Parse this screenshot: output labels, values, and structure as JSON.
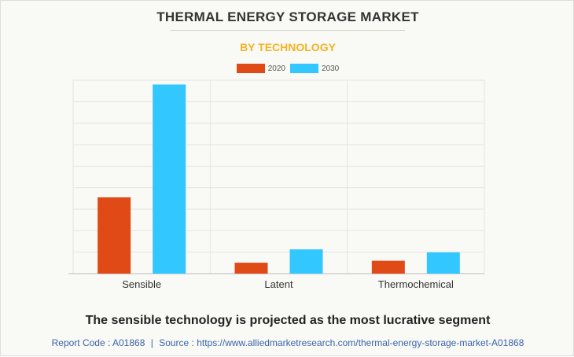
{
  "header": {
    "title": "THERMAL ENERGY STORAGE MARKET",
    "subtitle": "BY TECHNOLOGY"
  },
  "footer": {
    "headline": "The sensible technology is projected as the most lucrative segment",
    "report_code_label": "Report Code : A01868",
    "separator": "|",
    "source_label": "Source : https://www.alliedmarketresearch.com/thermal-energy-storage-market-A01868"
  },
  "colors": {
    "series_2020": "#e04a16",
    "series_2030": "#33c7ff",
    "subtitle": "#f5b222",
    "footer_text": "#3a64a8"
  },
  "chart_data": {
    "type": "bar",
    "title": "THERMAL ENERGY STORAGE MARKET",
    "subtitle": "BY TECHNOLOGY",
    "categories": [
      "Sensible",
      "Latent",
      "Thermochemical"
    ],
    "series": [
      {
        "name": "2020",
        "values": [
          35.5,
          5.1,
          6.0
        ]
      },
      {
        "name": "2030",
        "values": [
          88.0,
          11.3,
          9.9
        ]
      }
    ],
    "ylim": [
      0,
      90
    ],
    "grid": true,
    "legend": "top-center",
    "xlabel": "",
    "ylabel": ""
  }
}
